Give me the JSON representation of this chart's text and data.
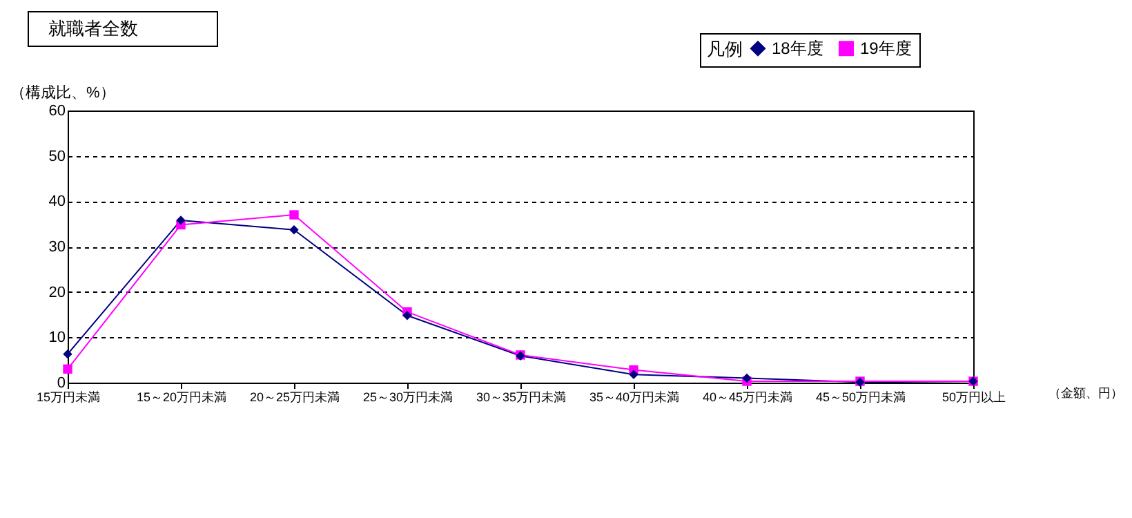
{
  "chart_data": {
    "type": "line",
    "title": "就職者全数",
    "ylabel": "（構成比、%）",
    "xlabel": "（金額、円）",
    "legend_title": "凡例",
    "categories": [
      "15万円未満",
      "15～20万円未満",
      "20～25万円未満",
      "25～30万円未満",
      "30～35万円未満",
      "35～40万円未満",
      "40～45万円未満",
      "45～50万円未満",
      "50万円以上"
    ],
    "series": [
      {
        "name": "18年度",
        "color": "#000080",
        "marker": "diamond",
        "values": [
          6.3,
          35.8,
          33.7,
          14.8,
          5.9,
          1.8,
          1.0,
          0.1,
          0.3
        ]
      },
      {
        "name": "19年度",
        "color": "#ff00ff",
        "marker": "square",
        "values": [
          3.0,
          34.8,
          37.0,
          15.6,
          6.1,
          2.8,
          0.3,
          0.3,
          0.3
        ]
      }
    ],
    "ylim": [
      0,
      60
    ],
    "yticks": [
      0,
      10,
      20,
      30,
      40,
      50,
      60
    ],
    "grid": "y",
    "line_style": "solid",
    "legend": "top right"
  }
}
